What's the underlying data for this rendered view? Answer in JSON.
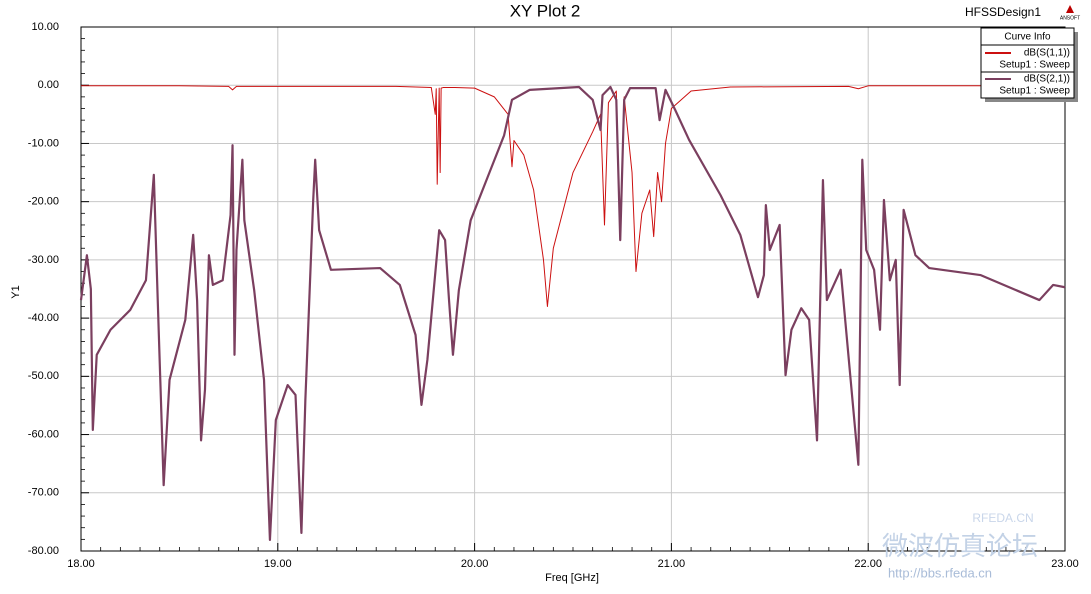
{
  "chart_data": {
    "type": "line",
    "title": "XY Plot 2",
    "design_name": "HFSSDesign1",
    "logo_text": "ANSOFT",
    "legend_title": "Curve Info",
    "x_label": "Freq [GHz]",
    "y_label": "Y1",
    "grid": true,
    "legend_position": "upper right",
    "annotations": [
      "RFEDA.CN",
      "http://bbs.rfeda.cn",
      "微波仿真论坛"
    ],
    "xlim": [
      18,
      23
    ],
    "ylim": [
      -80,
      10
    ],
    "xticks": [
      {
        "value": 18,
        "label": "18.00"
      },
      {
        "value": 19,
        "label": "19.00"
      },
      {
        "value": 20,
        "label": "20.00"
      },
      {
        "value": 21,
        "label": "21.00"
      },
      {
        "value": 22,
        "label": "22.00"
      },
      {
        "value": 23,
        "label": "23.00"
      }
    ],
    "yticks": [
      {
        "value": -80,
        "label": "-80.00"
      },
      {
        "value": -70,
        "label": "-70.00"
      },
      {
        "value": -60,
        "label": "-60.00"
      },
      {
        "value": -50,
        "label": "-50.00"
      },
      {
        "value": -40,
        "label": "-40.00"
      },
      {
        "value": -30,
        "label": "-30.00"
      },
      {
        "value": -20,
        "label": "-20.00"
      },
      {
        "value": -10,
        "label": "-10.00"
      },
      {
        "value": 0,
        "label": "0.00"
      },
      {
        "value": 10,
        "label": "10.00"
      }
    ],
    "series": [
      {
        "name": "dB(S(1,1))",
        "setup": "Setup1 : Sweep",
        "color": "#cc1010",
        "width": 1,
        "x": [
          18.0,
          18.5,
          18.75,
          18.77,
          18.79,
          19.2,
          19.6,
          19.78,
          19.8,
          19.805,
          19.81,
          19.82,
          19.825,
          19.83,
          19.84,
          19.9,
          20.0,
          20.1,
          20.17,
          20.19,
          20.2,
          20.25,
          20.3,
          20.35,
          20.37,
          20.4,
          20.5,
          20.6,
          20.64,
          20.66,
          20.68,
          20.72,
          20.74,
          20.76,
          20.8,
          20.82,
          20.85,
          20.89,
          20.91,
          20.93,
          20.95,
          20.97,
          21.0,
          21.1,
          21.3,
          21.9,
          21.95,
          22.0,
          23.0
        ],
        "values": [
          -0.1,
          -0.1,
          -0.2,
          -0.8,
          -0.2,
          -0.2,
          -0.2,
          -0.4,
          -5,
          -0.6,
          -17,
          -0.5,
          -15,
          -0.5,
          -0.4,
          -0.4,
          -0.5,
          -2,
          -5,
          -14,
          -9.5,
          -12,
          -18,
          -30,
          -38,
          -28,
          -15,
          -8,
          -5,
          -24,
          -3,
          -1,
          -26,
          -2,
          -15,
          -32,
          -22,
          -18,
          -26,
          -15,
          -20,
          -10,
          -4,
          -1,
          -0.3,
          -0.2,
          -0.6,
          -0.1,
          -0.1
        ]
      },
      {
        "name": "dB(S(2,1))",
        "setup": "Setup1 : Sweep",
        "color": "#7b3f5f",
        "width": 2.2,
        "x": [
          18.0,
          18.03,
          18.05,
          18.06,
          18.08,
          18.15,
          18.25,
          18.33,
          18.37,
          18.39,
          18.42,
          18.45,
          18.53,
          18.57,
          18.59,
          18.61,
          18.63,
          18.65,
          18.67,
          18.72,
          18.76,
          18.77,
          18.78,
          18.79,
          18.82,
          18.83,
          18.88,
          18.93,
          18.96,
          18.99,
          19.05,
          19.09,
          19.12,
          19.14,
          19.18,
          19.19,
          19.21,
          19.27,
          19.52,
          19.62,
          19.7,
          19.73,
          19.76,
          19.82,
          19.85,
          19.87,
          19.89,
          19.92,
          19.98,
          20.08,
          20.15,
          20.19,
          20.28,
          20.53,
          20.6,
          20.64,
          20.65,
          20.69,
          20.72,
          20.74,
          20.76,
          20.79,
          20.92,
          20.94,
          20.97,
          21.02,
          21.09,
          21.25,
          21.35,
          21.44,
          21.47,
          21.48,
          21.5,
          21.55,
          21.58,
          21.61,
          21.66,
          21.7,
          21.74,
          21.77,
          21.79,
          21.86,
          21.95,
          21.97,
          21.99,
          22.03,
          22.06,
          22.08,
          22.11,
          22.14,
          22.16,
          22.18,
          22.24,
          22.31,
          22.57,
          22.87,
          22.94,
          23.0
        ],
        "values": [
          -36.9,
          -29.2,
          -35,
          -59.2,
          -46.3,
          -42,
          -38.6,
          -33.5,
          -15.4,
          -37,
          -68.7,
          -50.6,
          -40.3,
          -25.7,
          -37,
          -61,
          -52.3,
          -29.2,
          -34.3,
          -33.5,
          -22.3,
          -10.3,
          -46.3,
          -28.3,
          -12.8,
          -23.2,
          -35.2,
          -50.6,
          -78.1,
          -57.5,
          -51.5,
          -53.2,
          -76.9,
          -54.1,
          -19.7,
          -12.8,
          -24.9,
          -31.7,
          -31.4,
          -34.3,
          -42.9,
          -54.9,
          -47.2,
          -24.9,
          -26.6,
          -36.9,
          -46.3,
          -35.2,
          -23.2,
          -14.6,
          -8.6,
          -2.5,
          -0.8,
          -0.3,
          -2.5,
          -7.7,
          -1.7,
          -0.3,
          -2.5,
          -26.6,
          -2.5,
          -0.5,
          -0.5,
          -6,
          -0.8,
          -4.3,
          -9.4,
          -18.9,
          -25.7,
          -36.4,
          -32.6,
          -20.6,
          -28.3,
          -24,
          -49.8,
          -42,
          -38.3,
          -40.3,
          -61,
          -16.3,
          -36.9,
          -31.7,
          -65.2,
          -12.8,
          -28.3,
          -31.7,
          -42,
          -19.7,
          -33.5,
          -30,
          -51.5,
          -21.4,
          -29.2,
          -31.4,
          -32.6,
          -36.9,
          -34.3,
          -34.7
        ]
      }
    ]
  }
}
